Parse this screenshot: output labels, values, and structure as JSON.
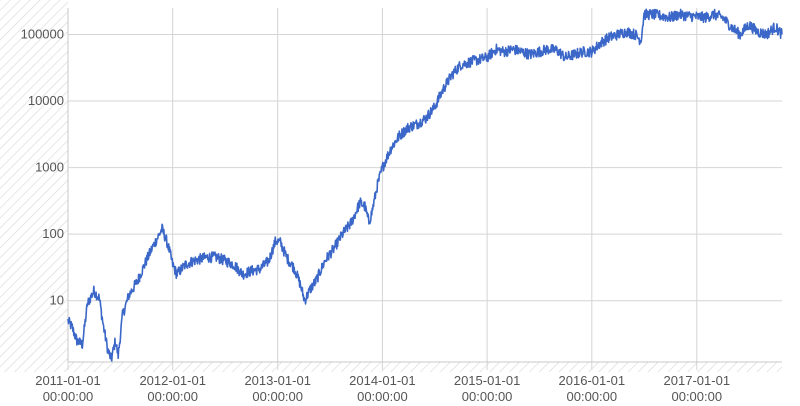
{
  "chart_data": {
    "type": "line",
    "title": "",
    "xlabel": "",
    "ylabel": "",
    "y_scale": "log",
    "ylim": [
      1.2,
      250000
    ],
    "xlim": [
      "2011-01-01",
      "2017-10-25"
    ],
    "grid": true,
    "x_ticks": [
      {
        "date": "2011-01-01",
        "line1": "2011-01-01",
        "line2": "00:00:00"
      },
      {
        "date": "2012-01-01",
        "line1": "2012-01-01",
        "line2": "00:00:00"
      },
      {
        "date": "2013-01-01",
        "line1": "2013-01-01",
        "line2": "00:00:00"
      },
      {
        "date": "2014-01-01",
        "line1": "2014-01-01",
        "line2": "00:00:00"
      },
      {
        "date": "2015-01-01",
        "line1": "2015-01-01",
        "line2": "00:00:00"
      },
      {
        "date": "2016-01-01",
        "line1": "2016-01-01",
        "line2": "00:00:00"
      },
      {
        "date": "2017-01-01",
        "line1": "2017-01-01",
        "line2": "00:00:00"
      }
    ],
    "y_ticks": [
      {
        "value": 10,
        "label": "10"
      },
      {
        "value": 100,
        "label": "100"
      },
      {
        "value": 1000,
        "label": "1000"
      },
      {
        "value": 10000,
        "label": "10000"
      },
      {
        "value": 100000,
        "label": "100000"
      }
    ],
    "series": [
      {
        "color": "#3b67c8",
        "points": [
          [
            "2011-01-01",
            5
          ],
          [
            "2011-01-15",
            4
          ],
          [
            "2011-02-01",
            2.5
          ],
          [
            "2011-02-20",
            2.2
          ],
          [
            "2011-03-10",
            9
          ],
          [
            "2011-04-01",
            14
          ],
          [
            "2011-04-20",
            11
          ],
          [
            "2011-05-05",
            4
          ],
          [
            "2011-05-20",
            1.8
          ],
          [
            "2011-06-01",
            1.3
          ],
          [
            "2011-06-15",
            2.5
          ],
          [
            "2011-06-25",
            1.5
          ],
          [
            "2011-07-10",
            6
          ],
          [
            "2011-08-01",
            12
          ],
          [
            "2011-09-01",
            20
          ],
          [
            "2011-10-01",
            40
          ],
          [
            "2011-10-20",
            60
          ],
          [
            "2011-11-10",
            90
          ],
          [
            "2011-11-25",
            120
          ],
          [
            "2011-12-15",
            70
          ],
          [
            "2012-01-01",
            35
          ],
          [
            "2012-01-15",
            25
          ],
          [
            "2012-02-15",
            35
          ],
          [
            "2012-03-15",
            40
          ],
          [
            "2012-05-01",
            45
          ],
          [
            "2012-06-01",
            45
          ],
          [
            "2012-07-01",
            40
          ],
          [
            "2012-08-01",
            35
          ],
          [
            "2012-09-01",
            25
          ],
          [
            "2012-10-01",
            28
          ],
          [
            "2012-11-01",
            30
          ],
          [
            "2012-12-01",
            40
          ],
          [
            "2012-12-25",
            80
          ],
          [
            "2013-01-10",
            75
          ],
          [
            "2013-02-01",
            45
          ],
          [
            "2013-03-01",
            30
          ],
          [
            "2013-03-20",
            18
          ],
          [
            "2013-04-05",
            10
          ],
          [
            "2013-04-25",
            15
          ],
          [
            "2013-05-15",
            20
          ],
          [
            "2013-06-15",
            40
          ],
          [
            "2013-07-15",
            60
          ],
          [
            "2013-08-15",
            100
          ],
          [
            "2013-09-15",
            150
          ],
          [
            "2013-10-15",
            300
          ],
          [
            "2013-11-01",
            260
          ],
          [
            "2013-11-15",
            150
          ],
          [
            "2013-11-25",
            210
          ],
          [
            "2013-12-15",
            550
          ],
          [
            "2014-01-01",
            1000
          ],
          [
            "2014-02-01",
            2000
          ],
          [
            "2014-03-01",
            3000
          ],
          [
            "2014-04-01",
            4000
          ],
          [
            "2014-05-01",
            4500
          ],
          [
            "2014-06-01",
            5500
          ],
          [
            "2014-07-01",
            8000
          ],
          [
            "2014-08-01",
            15000
          ],
          [
            "2014-09-01",
            25000
          ],
          [
            "2014-10-01",
            35000
          ],
          [
            "2014-11-15",
            40000
          ],
          [
            "2015-01-01",
            45000
          ],
          [
            "2015-02-01",
            60000
          ],
          [
            "2015-03-01",
            55000
          ],
          [
            "2015-04-01",
            60000
          ],
          [
            "2015-05-01",
            55000
          ],
          [
            "2015-06-01",
            50000
          ],
          [
            "2015-07-01",
            55000
          ],
          [
            "2015-08-01",
            60000
          ],
          [
            "2015-09-01",
            58000
          ],
          [
            "2015-10-01",
            45000
          ],
          [
            "2015-11-01",
            50000
          ],
          [
            "2015-12-01",
            55000
          ],
          [
            "2016-01-01",
            55000
          ],
          [
            "2016-02-01",
            75000
          ],
          [
            "2016-03-01",
            90000
          ],
          [
            "2016-04-01",
            100000
          ],
          [
            "2016-05-01",
            110000
          ],
          [
            "2016-06-01",
            100000
          ],
          [
            "2016-06-20",
            80000
          ],
          [
            "2016-07-01",
            200000
          ],
          [
            "2016-08-01",
            200000
          ],
          [
            "2016-09-01",
            190000
          ],
          [
            "2016-10-01",
            180000
          ],
          [
            "2016-11-01",
            200000
          ],
          [
            "2016-12-01",
            190000
          ],
          [
            "2017-01-01",
            185000
          ],
          [
            "2017-02-01",
            180000
          ],
          [
            "2017-03-01",
            200000
          ],
          [
            "2017-04-01",
            180000
          ],
          [
            "2017-05-01",
            130000
          ],
          [
            "2017-06-01",
            100000
          ],
          [
            "2017-07-01",
            140000
          ],
          [
            "2017-08-01",
            110000
          ],
          [
            "2017-09-01",
            100000
          ],
          [
            "2017-10-01",
            130000
          ],
          [
            "2017-10-25",
            100000
          ]
        ]
      }
    ]
  }
}
